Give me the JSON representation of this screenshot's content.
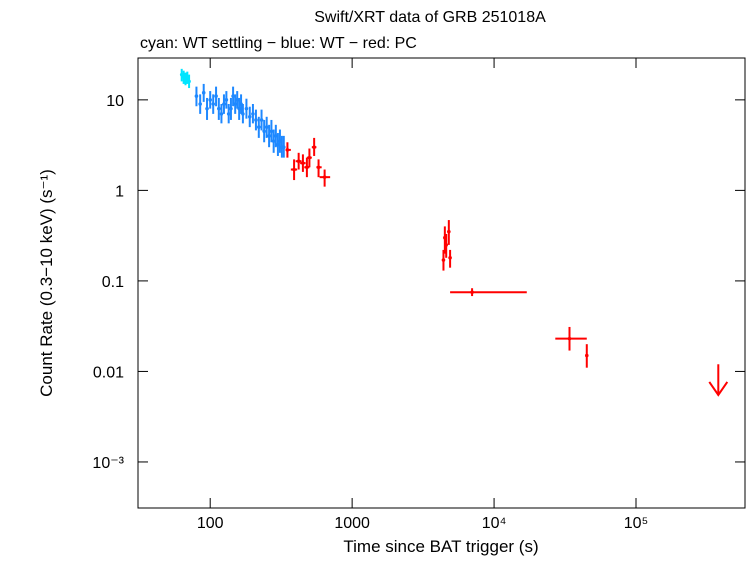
{
  "chart_data": {
    "type": "scatter",
    "title": "Swift/XRT data of GRB 251018A",
    "subtitle": "cyan: WT settling − blue: WT − red: PC",
    "x_label": "Time since BAT trigger (s)",
    "y_label": "Count Rate (0.3−10 keV) (s⁻¹)",
    "x_log": true,
    "y_log": true,
    "xlim": [
      31,
      586000
    ],
    "ylim": [
      0.00031,
      29
    ],
    "xticks": [
      100,
      1000,
      {
        "value": 10000,
        "label": "10⁴"
      },
      {
        "value": 100000,
        "label": "10⁵"
      }
    ],
    "yticks": [
      {
        "value": 0.001,
        "label": "10⁻³"
      },
      0.01,
      0.1,
      1,
      10
    ],
    "series": [
      {
        "color": "#00e5ff",
        "x": [
          63,
          65,
          67,
          69,
          71
        ],
        "values": [
          19,
          18,
          17,
          17.5,
          16
        ],
        "y_low": [
          16,
          15,
          14.5,
          15,
          13.5
        ],
        "y_high": [
          22,
          21,
          20,
          20.5,
          19
        ]
      },
      {
        "color": "#1e88ff",
        "x": [
          80,
          85,
          90,
          95,
          100,
          105,
          110,
          115,
          120,
          125,
          130,
          135,
          140,
          145,
          150,
          155,
          160,
          165,
          170,
          180,
          190,
          200,
          210,
          220,
          230,
          240,
          250,
          260,
          270,
          280,
          290,
          300,
          310,
          320,
          330
        ],
        "values": [
          11,
          9,
          12,
          8,
          10,
          9,
          11,
          8,
          7,
          9,
          10,
          7,
          8,
          11,
          9,
          10,
          8,
          9,
          7,
          8,
          6.5,
          7,
          6,
          5,
          6,
          4.5,
          5,
          4,
          4.5,
          3.5,
          4,
          3.2,
          3.5,
          3,
          3
        ],
        "y_low": [
          8.5,
          7,
          9.5,
          6,
          8,
          7,
          8.5,
          6,
          5.5,
          7,
          8,
          5.5,
          6,
          8.5,
          7,
          8,
          6,
          7,
          5.5,
          6.2,
          5,
          5.5,
          4.6,
          3.8,
          4.6,
          3.4,
          3.8,
          3,
          3.4,
          2.6,
          3,
          2.4,
          2.6,
          2.3,
          2.3
        ],
        "y_high": [
          14,
          11.5,
          15,
          10.5,
          12.5,
          11.5,
          14,
          10.5,
          9,
          11.5,
          12.5,
          9,
          10.5,
          14,
          11.5,
          12.5,
          10.5,
          11.5,
          9,
          10.3,
          8.4,
          9,
          7.8,
          6.5,
          7.8,
          6,
          6.5,
          5.3,
          6,
          4.7,
          5.3,
          4.3,
          4.7,
          4,
          4
        ]
      },
      {
        "color": "#ff0000",
        "x": [
          350,
          390,
          420,
          450,
          480,
          500,
          540,
          580,
          640,
          4400,
          4500,
          4600,
          4800,
          4900,
          7000,
          34000,
          45000
        ],
        "values": [
          2.8,
          1.7,
          2.1,
          2.0,
          1.8,
          2.3,
          3.0,
          1.8,
          1.4,
          0.17,
          0.3,
          0.25,
          0.35,
          0.18,
          0.075,
          0.023,
          0.015
        ],
        "x_low": [
          340,
          370,
          400,
          430,
          460,
          480,
          520,
          560,
          590,
          4300,
          4400,
          4500,
          4700,
          4800,
          4900,
          27000,
          44000
        ],
        "x_high": [
          370,
          410,
          440,
          470,
          500,
          520,
          560,
          610,
          700,
          4500,
          4600,
          4700,
          4900,
          5000,
          17000,
          45000,
          46000
        ],
        "y_low": [
          2.3,
          1.3,
          1.7,
          1.6,
          1.4,
          1.8,
          2.4,
          1.4,
          1.1,
          0.13,
          0.2,
          0.18,
          0.25,
          0.14,
          0.068,
          0.017,
          0.011
        ],
        "y_high": [
          3.4,
          2.2,
          2.6,
          2.5,
          2.3,
          2.9,
          3.8,
          2.2,
          1.7,
          0.22,
          0.4,
          0.33,
          0.47,
          0.22,
          0.083,
          0.031,
          0.02
        ]
      }
    ],
    "upper_limit": {
      "color": "#ff0000",
      "x": 380000,
      "value": 0.0055,
      "from": 0.012
    }
  }
}
